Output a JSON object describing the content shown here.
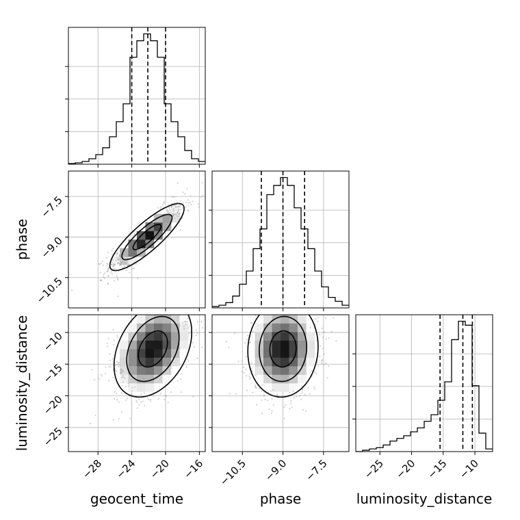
{
  "chart_data": {
    "type": "corner",
    "parameters": [
      "geocent_time",
      "phase",
      "luminosity_distance"
    ],
    "labels": {
      "geocent_time": "geocent_time",
      "phase": "phase",
      "luminosity_distance": "luminosity_distance"
    },
    "ranges": {
      "geocent_time": [
        -31.5,
        -15.3
      ],
      "phase": [
        -11.62,
        -6.56
      ],
      "luminosity_distance": [
        -28.8,
        -7.2
      ]
    },
    "ticks": {
      "geocent_time": [
        -28,
        -24,
        -20,
        -16
      ],
      "phase": [
        -10.5,
        -9.0,
        -7.5
      ],
      "luminosity_distance": [
        -25,
        -20,
        -15,
        -10
      ]
    },
    "tick_labels": {
      "geocent_time": [
        "−28",
        "−24",
        "−20",
        "−16"
      ],
      "phase": [
        "−10.5",
        "−9.0",
        "−7.5"
      ],
      "luminosity_distance": [
        "−25",
        "−20",
        "−15",
        "−10"
      ]
    },
    "histograms": {
      "geocent_time": {
        "edges": [
          -31.5,
          -30.69,
          -29.88,
          -29.07,
          -28.26,
          -27.45,
          -26.64,
          -25.83,
          -25.02,
          -24.21,
          -23.4,
          -22.59,
          -21.78,
          -20.97,
          -20.16,
          -19.35,
          -18.54,
          -17.73,
          -16.92,
          -16.11,
          -15.3
        ],
        "counts": [
          0.005,
          0.01,
          0.02,
          0.04,
          0.07,
          0.12,
          0.2,
          0.31,
          0.44,
          0.78,
          0.9,
          0.95,
          0.9,
          0.78,
          0.44,
          0.31,
          0.2,
          0.1,
          0.04,
          0.02
        ],
        "quantiles": [
          -24.0,
          -22.1,
          -20.0
        ]
      },
      "phase": {
        "edges": [
          -11.62,
          -11.367,
          -11.114,
          -10.861,
          -10.608,
          -10.355,
          -10.102,
          -9.849,
          -9.596,
          -9.343,
          -9.09,
          -8.837,
          -8.584,
          -8.331,
          -8.078,
          -7.825,
          -7.572,
          -7.319,
          -7.066,
          -6.813,
          -6.56
        ],
        "counts": [
          0.01,
          0.02,
          0.04,
          0.09,
          0.18,
          0.28,
          0.45,
          0.6,
          0.86,
          0.93,
          0.99,
          0.93,
          0.76,
          0.6,
          0.45,
          0.28,
          0.16,
          0.08,
          0.05,
          0.02
        ],
        "quantiles": [
          -9.8,
          -9.0,
          -8.2
        ]
      },
      "luminosity_distance": {
        "edges": [
          -28.8,
          -27.72,
          -26.64,
          -25.56,
          -24.48,
          -23.4,
          -22.32,
          -21.24,
          -20.16,
          -19.08,
          -18.0,
          -16.92,
          -15.84,
          -14.76,
          -13.68,
          -12.6,
          -11.52,
          -10.44,
          -9.36,
          -8.28,
          -7.2
        ],
        "counts": [
          0,
          0.01,
          0.02,
          0.03,
          0.05,
          0.08,
          0.1,
          0.12,
          0.15,
          0.18,
          0.23,
          0.28,
          0.39,
          0.53,
          0.85,
          0.99,
          0.96,
          0.5,
          0.14,
          0.02
        ],
        "quantiles": [
          -15.5,
          -11.9,
          -10.4
        ]
      }
    },
    "pairs": [
      {
        "x": "geocent_time",
        "y": "phase",
        "center": [
          -22.2,
          -9.0
        ],
        "sd": [
          2.2,
          0.62
        ],
        "rho": 0.85
      },
      {
        "x": "geocent_time",
        "y": "luminosity_distance",
        "center": [
          -21.5,
          -12.6
        ],
        "sd": [
          2.3,
          3.8
        ],
        "rho": 0.35
      },
      {
        "x": "phase",
        "y": "luminosity_distance",
        "center": [
          -9.0,
          -12.6
        ],
        "sd": [
          0.65,
          3.8
        ],
        "rho": 0.05
      }
    ],
    "grid": true,
    "show_y_ticklabels_on_diagonal": false
  }
}
